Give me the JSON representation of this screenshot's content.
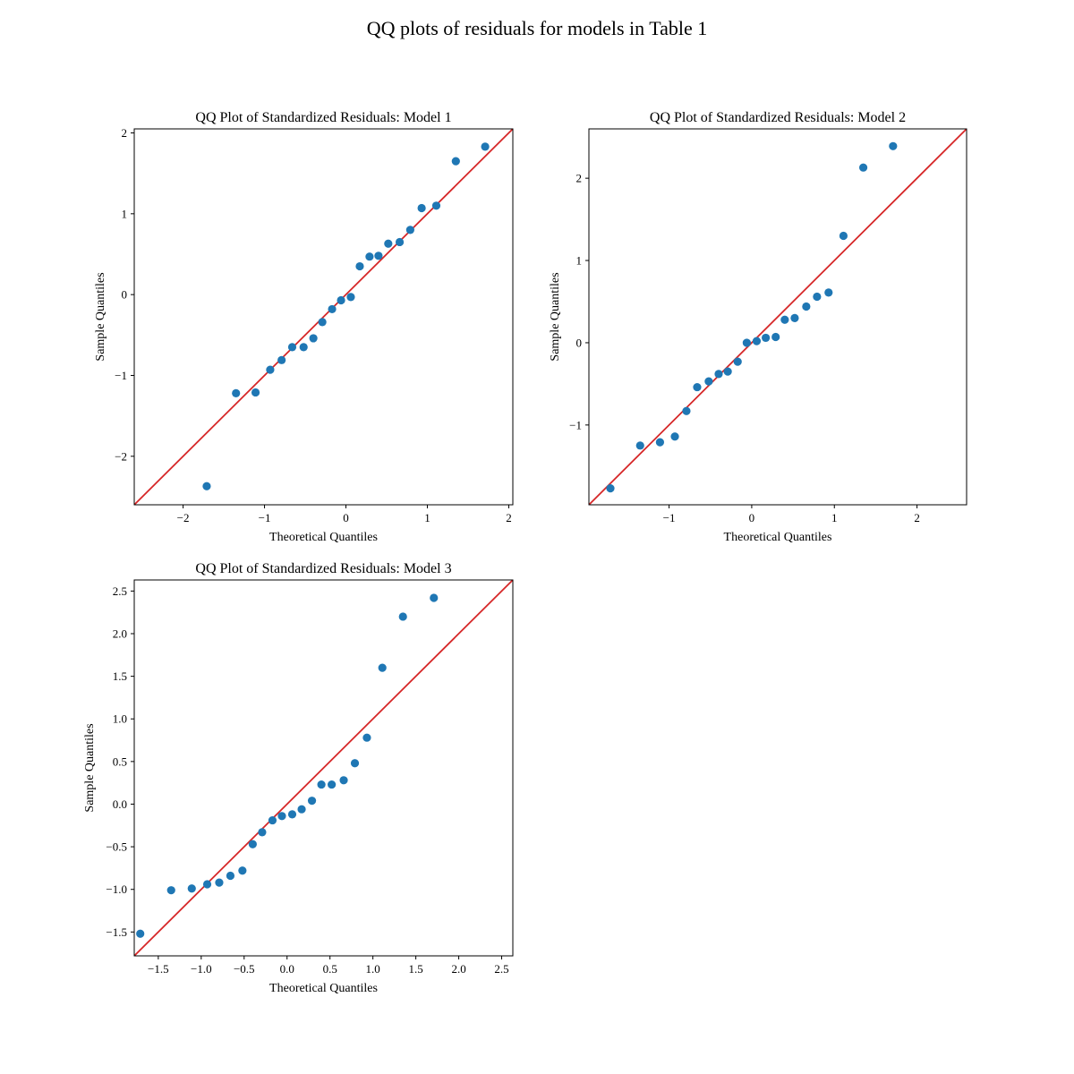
{
  "figure": {
    "title": "QQ plots of residuals for models in Table 1"
  },
  "colors": {
    "points": "#1f77b4",
    "reference_line": "#e31a1c"
  },
  "chart_data": [
    {
      "type": "scatter",
      "title": "QQ Plot of Standardized Residuals: Model 1",
      "xlabel": "Theoretical Quantiles",
      "ylabel": "Sample Quantiles",
      "xlim": [
        -2.6,
        2.05
      ],
      "ylim": [
        -2.6,
        2.05
      ],
      "xticks": [
        -2,
        -1,
        0,
        1,
        2
      ],
      "xtick_labels": [
        "−2",
        "−1",
        "0",
        "1",
        "2"
      ],
      "yticks": [
        -2,
        -1,
        0,
        1,
        2
      ],
      "ytick_labels": [
        "−2",
        "−1",
        "0",
        "1",
        "2"
      ],
      "reference_line": "45-degree",
      "x": [
        -1.71,
        -1.35,
        -1.11,
        -0.93,
        -0.79,
        -0.66,
        -0.52,
        -0.4,
        -0.29,
        -0.17,
        -0.06,
        0.06,
        0.17,
        0.29,
        0.4,
        0.52,
        0.66,
        0.79,
        0.93,
        1.11,
        1.35,
        1.71
      ],
      "y": [
        -2.37,
        -1.22,
        -1.21,
        -0.93,
        -0.81,
        -0.65,
        -0.65,
        -0.54,
        -0.34,
        -0.18,
        -0.07,
        -0.03,
        0.35,
        0.47,
        0.48,
        0.63,
        0.65,
        0.8,
        1.07,
        1.1,
        1.65,
        1.83
      ]
    },
    {
      "type": "scatter",
      "title": "QQ Plot of Standardized Residuals: Model 2",
      "xlabel": "Theoretical Quantiles",
      "ylabel": "Sample Quantiles",
      "xlim": [
        -1.97,
        2.6
      ],
      "ylim": [
        -1.97,
        2.6
      ],
      "xticks": [
        -1,
        0,
        1,
        2
      ],
      "xtick_labels": [
        "−1",
        "0",
        "1",
        "2"
      ],
      "yticks": [
        -1,
        0,
        1,
        2
      ],
      "ytick_labels": [
        "−1",
        "0",
        "1",
        "2"
      ],
      "reference_line": "45-degree",
      "x": [
        -1.71,
        -1.35,
        -1.11,
        -0.93,
        -0.79,
        -0.66,
        -0.52,
        -0.4,
        -0.29,
        -0.17,
        -0.06,
        0.06,
        0.17,
        0.29,
        0.4,
        0.52,
        0.66,
        0.79,
        0.93,
        1.11,
        1.35,
        1.71
      ],
      "y": [
        -1.77,
        -1.25,
        -1.21,
        -1.14,
        -0.83,
        -0.54,
        -0.47,
        -0.38,
        -0.35,
        -0.23,
        0.0,
        0.02,
        0.06,
        0.07,
        0.28,
        0.3,
        0.44,
        0.56,
        0.61,
        1.3,
        2.13,
        2.39
      ]
    },
    {
      "type": "scatter",
      "title": "QQ Plot of Standardized Residuals: Model 3",
      "xlabel": "Theoretical Quantiles",
      "ylabel": "Sample Quantiles",
      "xlim": [
        -1.78,
        2.63
      ],
      "ylim": [
        -1.78,
        2.63
      ],
      "xticks": [
        -1.5,
        -1.0,
        -0.5,
        0.0,
        0.5,
        1.0,
        1.5,
        2.0,
        2.5
      ],
      "xtick_labels": [
        "−1.5",
        "−1.0",
        "−0.5",
        "0.0",
        "0.5",
        "1.0",
        "1.5",
        "2.0",
        "2.5"
      ],
      "yticks": [
        -1.5,
        -1.0,
        -0.5,
        0.0,
        0.5,
        1.0,
        1.5,
        2.0,
        2.5
      ],
      "ytick_labels": [
        "−1.5",
        "−1.0",
        "−0.5",
        "0.0",
        "0.5",
        "1.0",
        "1.5",
        "2.0",
        "2.5"
      ],
      "reference_line": "45-degree",
      "x": [
        -1.71,
        -1.35,
        -1.11,
        -0.93,
        -0.79,
        -0.66,
        -0.52,
        -0.4,
        -0.29,
        -0.17,
        -0.06,
        0.06,
        0.17,
        0.29,
        0.4,
        0.52,
        0.66,
        0.79,
        0.93,
        1.11,
        1.35,
        1.71
      ],
      "y": [
        -1.52,
        -1.01,
        -0.99,
        -0.94,
        -0.92,
        -0.84,
        -0.78,
        -0.47,
        -0.33,
        -0.19,
        -0.14,
        -0.12,
        -0.06,
        0.04,
        0.23,
        0.23,
        0.28,
        0.48,
        0.78,
        1.6,
        2.2,
        2.42
      ]
    }
  ]
}
